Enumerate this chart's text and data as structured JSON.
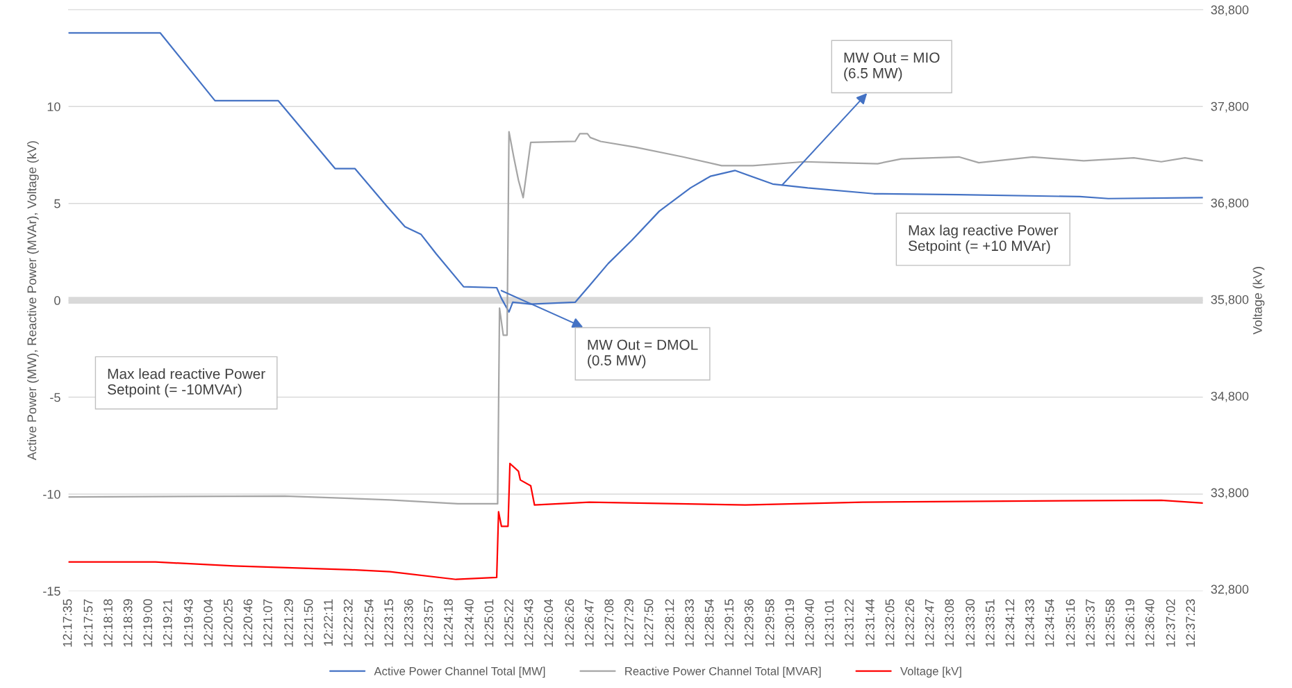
{
  "chart_data": {
    "type": "line",
    "ylabel": "Active Power (MW), Reactive Power (MVAr), Voltage (kV)",
    "y2label": "Voltage (kV)",
    "series": [
      {
        "name": "Active Power Channel Total [MW]",
        "color": "#4472c4",
        "x": [
          12.29306,
          12.32,
          12.33611,
          12.35472,
          12.37139,
          12.37722,
          12.38639,
          12.39194,
          12.39667,
          12.40111,
          12.40917,
          12.41889,
          12.42028,
          12.4225,
          12.42361,
          12.42889,
          12.44194,
          12.44611,
          12.45167,
          12.45861,
          12.46667,
          12.47583,
          12.48167,
          12.48889,
          12.5,
          12.51028,
          12.52972,
          12.55472,
          12.59028,
          12.59861,
          12.62639
        ],
        "values": [
          13.8,
          13.8,
          10.3,
          10.3,
          6.8,
          6.8,
          4.9,
          3.8,
          3.4,
          2.4,
          0.7,
          0.65,
          0.1,
          -0.6,
          -0.1,
          -0.2,
          -0.1,
          0.75,
          1.9,
          3.1,
          4.6,
          5.8,
          6.4,
          6.7,
          6.0,
          5.8,
          5.5,
          5.45,
          5.35,
          5.25,
          5.3
        ]
      },
      {
        "name": "Reactive Power Channel Total [MVAR]",
        "color": "#a5a5a5",
        "x": [
          12.29306,
          12.35667,
          12.3875,
          12.4075,
          12.41917,
          12.41972,
          12.42083,
          12.42194,
          12.4225,
          12.42389,
          12.42528,
          12.42667,
          12.42889,
          12.44194,
          12.44333,
          12.44556,
          12.44639,
          12.44944,
          12.45972,
          12.47361,
          12.485,
          12.49417,
          12.50917,
          12.51944,
          12.53083,
          12.53778,
          12.55472,
          12.56056,
          12.57639,
          12.59139,
          12.60611,
          12.61417,
          12.62111,
          12.62639
        ],
        "values": [
          -10.15,
          -10.1,
          -10.3,
          -10.5,
          -10.5,
          -0.4,
          -1.8,
          -1.8,
          8.7,
          7.4,
          6.2,
          5.3,
          8.15,
          8.2,
          8.6,
          8.6,
          8.4,
          8.2,
          7.9,
          7.4,
          6.95,
          6.95,
          7.15,
          7.1,
          7.05,
          7.3,
          7.4,
          7.1,
          7.4,
          7.2,
          7.35,
          7.15,
          7.35,
          7.2
        ]
      },
      {
        "name": "Voltage [kV]",
        "color": "#ff0000",
        "axis": "y2",
        "x": [
          12.29306,
          12.31861,
          12.34167,
          12.37611,
          12.3875,
          12.40694,
          12.41889,
          12.41944,
          12.42028,
          12.42222,
          12.42278,
          12.42528,
          12.42583,
          12.42889,
          12.43,
          12.44611,
          12.49194,
          12.52639,
          12.56833,
          12.61417,
          12.62639
        ],
        "values": [
          33080,
          33080,
          33040,
          33000,
          32980,
          32900,
          32920,
          33600,
          33450,
          33450,
          34100,
          34020,
          33930,
          33870,
          33670,
          33700,
          33670,
          33700,
          33710,
          33720,
          33690
        ]
      }
    ],
    "xlim": [
      12.29306,
      12.62639
    ],
    "xticks": [
      {
        "value": 12.29306,
        "label": "12:17:35"
      },
      {
        "value": 12.29917,
        "label": "12:17:57"
      },
      {
        "value": 12.305,
        "label": "12:18:18"
      },
      {
        "value": 12.31083,
        "label": "12:18:39"
      },
      {
        "value": 12.31667,
        "label": "12:19:00"
      },
      {
        "value": 12.3225,
        "label": "12:19:21"
      },
      {
        "value": 12.32861,
        "label": "12:19:43"
      },
      {
        "value": 12.33444,
        "label": "12:20:04"
      },
      {
        "value": 12.34028,
        "label": "12:20:25"
      },
      {
        "value": 12.34611,
        "label": "12:20:46"
      },
      {
        "value": 12.35194,
        "label": "12:21:07"
      },
      {
        "value": 12.35806,
        "label": "12:21:29"
      },
      {
        "value": 12.36389,
        "label": "12:21:50"
      },
      {
        "value": 12.36972,
        "label": "12:22:11"
      },
      {
        "value": 12.37556,
        "label": "12:22:32"
      },
      {
        "value": 12.38167,
        "label": "12:22:54"
      },
      {
        "value": 12.3875,
        "label": "12:23:15"
      },
      {
        "value": 12.39333,
        "label": "12:23:36"
      },
      {
        "value": 12.39917,
        "label": "12:23:57"
      },
      {
        "value": 12.405,
        "label": "12:24:18"
      },
      {
        "value": 12.41111,
        "label": "12:24:40"
      },
      {
        "value": 12.41694,
        "label": "12:25:01"
      },
      {
        "value": 12.42278,
        "label": "12:25:22"
      },
      {
        "value": 12.42861,
        "label": "12:25:43"
      },
      {
        "value": 12.43444,
        "label": "12:26:04"
      },
      {
        "value": 12.44056,
        "label": "12:26:26"
      },
      {
        "value": 12.44639,
        "label": "12:26:47"
      },
      {
        "value": 12.45222,
        "label": "12:27:08"
      },
      {
        "value": 12.45806,
        "label": "12:27:29"
      },
      {
        "value": 12.46389,
        "label": "12:27:50"
      },
      {
        "value": 12.47,
        "label": "12:28:12"
      },
      {
        "value": 12.47583,
        "label": "12:28:33"
      },
      {
        "value": 12.48167,
        "label": "12:28:54"
      },
      {
        "value": 12.4875,
        "label": "12:29:15"
      },
      {
        "value": 12.49333,
        "label": "12:29:36"
      },
      {
        "value": 12.49944,
        "label": "12:29:58"
      },
      {
        "value": 12.50528,
        "label": "12:30:19"
      },
      {
        "value": 12.51111,
        "label": "12:30:40"
      },
      {
        "value": 12.51694,
        "label": "12:31:01"
      },
      {
        "value": 12.52278,
        "label": "12:31:22"
      },
      {
        "value": 12.52889,
        "label": "12:31:44"
      },
      {
        "value": 12.53472,
        "label": "12:32:05"
      },
      {
        "value": 12.54056,
        "label": "12:32:26"
      },
      {
        "value": 12.54639,
        "label": "12:32:47"
      },
      {
        "value": 12.55222,
        "label": "12:33:08"
      },
      {
        "value": 12.55833,
        "label": "12:33:30"
      },
      {
        "value": 12.56417,
        "label": "12:33:51"
      },
      {
        "value": 12.57,
        "label": "12:34:12"
      },
      {
        "value": 12.57583,
        "label": "12:34:33"
      },
      {
        "value": 12.58167,
        "label": "12:34:54"
      },
      {
        "value": 12.58778,
        "label": "12:35:16"
      },
      {
        "value": 12.59361,
        "label": "12:35:37"
      },
      {
        "value": 12.59944,
        "label": "12:35:58"
      },
      {
        "value": 12.60528,
        "label": "12:36:19"
      },
      {
        "value": 12.61111,
        "label": "12:36:40"
      },
      {
        "value": 12.61722,
        "label": "12:37:02"
      },
      {
        "value": 12.62306,
        "label": "12:37:23"
      }
    ],
    "ylim": [
      -15,
      15
    ],
    "yticks": [
      -15,
      -10,
      -5,
      0,
      5,
      10
    ],
    "y2lim": [
      32780,
      38800
    ],
    "y2ticks": [
      {
        "value": 32800,
        "label": "32,800"
      },
      {
        "value": 33800,
        "label": "33,800"
      },
      {
        "value": 34800,
        "label": "34,800"
      },
      {
        "value": 35800,
        "label": "35,800"
      },
      {
        "value": 36800,
        "label": "36,800"
      },
      {
        "value": 37800,
        "label": "37,800"
      },
      {
        "value": 38800,
        "label": "38,800"
      }
    ],
    "ref_lines": [
      {
        "axis": "y",
        "value": 0,
        "color": "#d9d9d9"
      }
    ],
    "grid": "y",
    "legend": "bottom",
    "line_style": "solid",
    "marker": "none",
    "annotations": [
      "Max lead reactive Power\nSetpoint (= -10MVAr)",
      {
        "text": "MW Out = DMOL\n(0.5 MW)",
        "x": 12.42028,
        "y": 0.5
      },
      {
        "text": "MW Out = MIO\n(6.5 MW)",
        "x": 12.50278,
        "y": 5.95
      },
      "Max lag reactive Power\nSetpoint (= +10 MVAr)"
    ]
  }
}
